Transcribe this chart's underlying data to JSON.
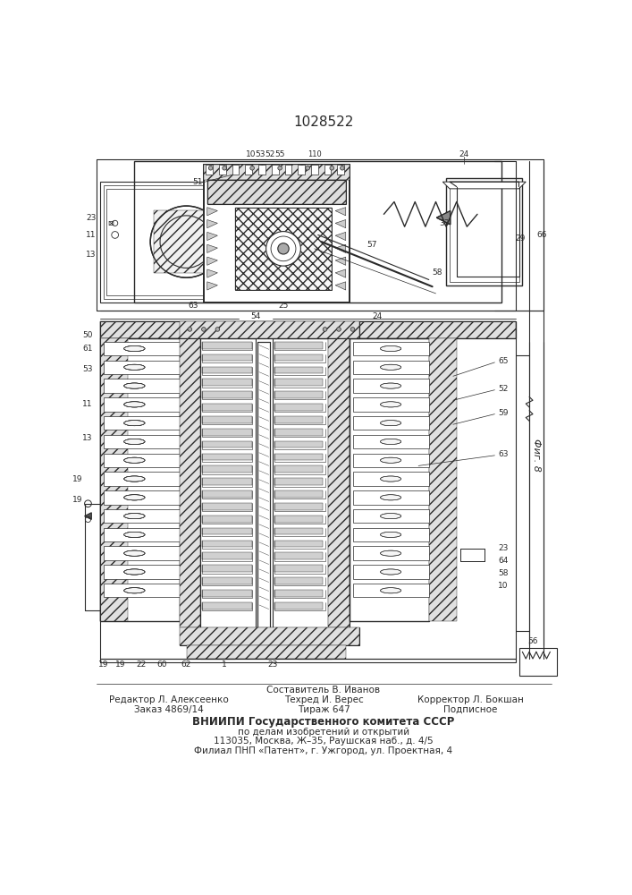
{
  "title": "1028522",
  "bg_color": "#ffffff",
  "draw_color": "#2a2a2a",
  "footer": {
    "col1": {
      "line1": "Редактор Л. Алексеенко",
      "line2": "Заказ 4869/14"
    },
    "col2_top": "Составитель В. Иванов",
    "col2": {
      "line1": "Техред И. Верес",
      "line2": "Тираж 647"
    },
    "col3": {
      "line1": "Корректор Л. Бокшан",
      "line2": "Подписное"
    },
    "org1": "ВНИИПИ Государственного комитета СССР",
    "org2": "по делам изобретений и открытий",
    "org3": "113035, Москва, Ж–35, Раушская наб., д. 4/5",
    "org4": "Филиал ПНП «Патент», г. Ужгород, ул. Проектная, 4"
  },
  "fig_label": "Фиг. 8"
}
